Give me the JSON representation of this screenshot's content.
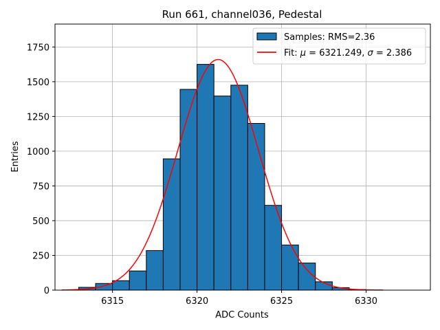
{
  "chart_data": {
    "type": "bar",
    "title": "Run 661, channel036, Pedestal",
    "xlabel": "ADC Counts",
    "ylabel": "Entries",
    "xlim": [
      6311.6,
      6333.8
    ],
    "ylim": [
      0,
      1915
    ],
    "grid": true,
    "legend_position": "top-right",
    "x_ticks": [
      6315,
      6320,
      6325,
      6330
    ],
    "y_ticks": [
      0,
      250,
      500,
      750,
      1000,
      1250,
      1500,
      1750
    ],
    "histogram": {
      "name": "Samples: RMS=2.36",
      "bin_edges": [
        6313,
        6314,
        6315,
        6316,
        6317,
        6318,
        6319,
        6320,
        6321,
        6322,
        6323,
        6324,
        6325,
        6326,
        6327,
        6328,
        6329,
        6330
      ],
      "values": [
        20,
        48,
        68,
        138,
        285,
        945,
        1445,
        1625,
        1397,
        1475,
        1200,
        610,
        325,
        195,
        60,
        18,
        4
      ]
    },
    "fit": {
      "name": "Fit: μ = 6321.249, σ = 2.386",
      "mu": 6321.249,
      "sigma": 2.386,
      "amplitude": 1660,
      "x_range": [
        6312,
        6331
      ]
    },
    "colors": {
      "bars": "#1f77b4",
      "bar_edge": "#000000",
      "fit_line": "#ff0000",
      "grid": "#b0b0b0"
    }
  },
  "legend": {
    "samples_label": "Samples: RMS=2.36",
    "fit_prefix": "Fit: ",
    "mu_symbol": "μ",
    "mu_text": " = 6321.249, ",
    "sigma_symbol": "σ",
    "sigma_text": " = 2.386"
  }
}
